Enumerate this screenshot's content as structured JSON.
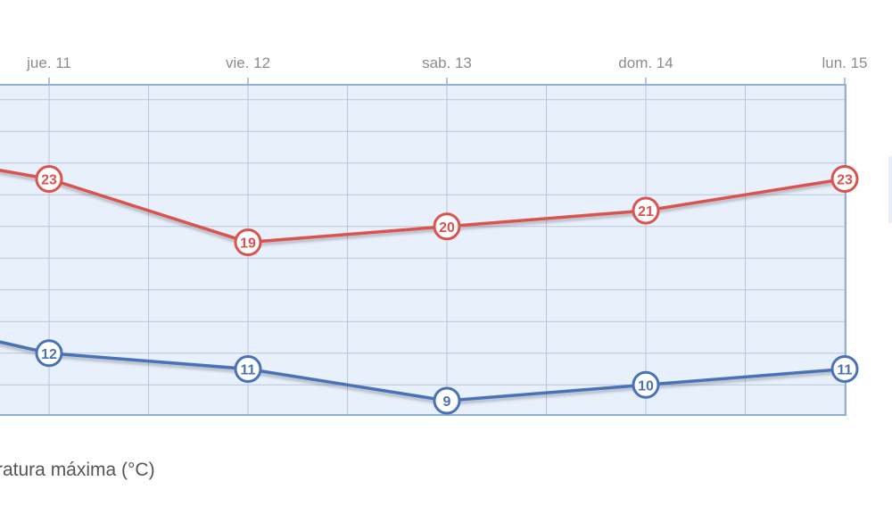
{
  "chart_data": {
    "type": "line",
    "categories": [
      "jue. 11",
      "vie. 12",
      "sab. 13",
      "dom. 14",
      "lun. 15"
    ],
    "series": [
      {
        "values": [
          23,
          19,
          20,
          21,
          23
        ],
        "color": "#d9534f"
      },
      {
        "values": [
          12,
          11,
          9,
          10,
          11
        ],
        "color": "#4a72b8"
      }
    ],
    "grid": true,
    "plot_background": "#e8f0fc",
    "grid_color": "#b9c6d8",
    "border_color": "#8fb0d9"
  },
  "legend": {
    "label": "ratura máxima (°C)"
  }
}
